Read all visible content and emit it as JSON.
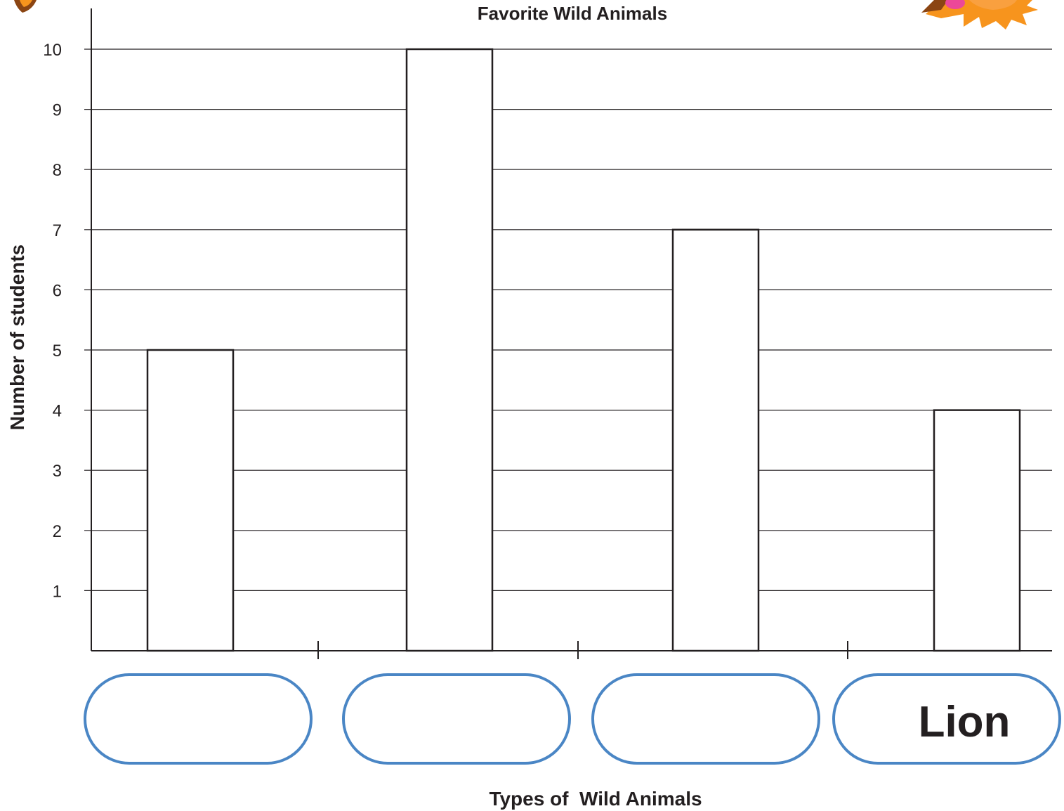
{
  "chart_data": {
    "type": "bar",
    "title": "Favorite Wild Animals",
    "xlabel": "Types of  Wild Animals",
    "ylabel": "Number of students",
    "categories": [
      "",
      "",
      "",
      "Lion"
    ],
    "values": [
      5,
      10,
      7,
      4
    ],
    "ylim": [
      0,
      10
    ],
    "yticks": [
      "1",
      "2",
      "3",
      "4",
      "5",
      "6",
      "7",
      "8",
      "9",
      "10"
    ],
    "grid": true,
    "legend": "none",
    "colors": {
      "bar_fill": "#ffffff",
      "bar_stroke": "#231f20",
      "grid": "#231f20",
      "label_box": "#4a86c5",
      "decor_orange": "#f7941d",
      "decor_brown": "#8b4513",
      "decor_pink": "#ec4899"
    }
  },
  "decorations": {
    "left_corner_icon": "animal-ear-icon",
    "right_corner_icon": "lion-mane-icon"
  }
}
